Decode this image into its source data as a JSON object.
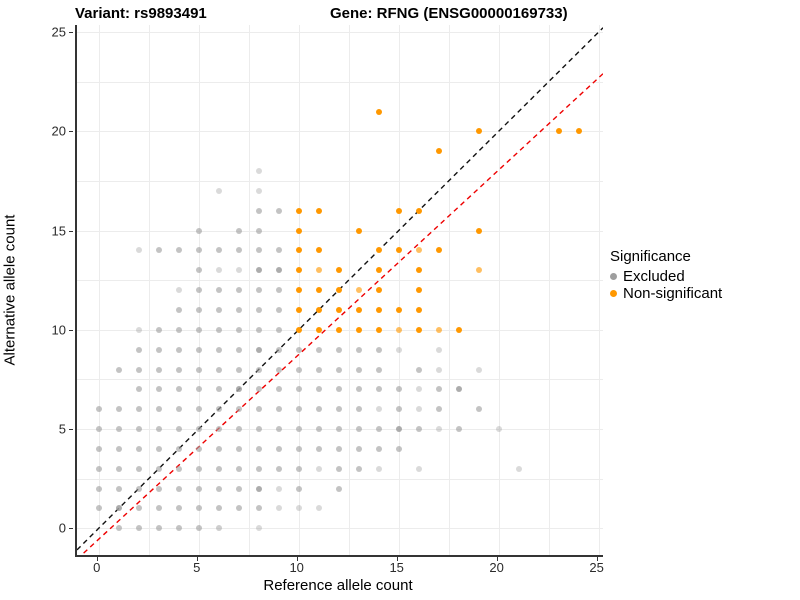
{
  "titles": {
    "left": "Variant: rs9893491",
    "right": "Gene: RFNG (ENSG00000169733)"
  },
  "legend": {
    "title": "Significance",
    "items": [
      {
        "label": "Excluded"
      },
      {
        "label": "Non-significant"
      }
    ]
  },
  "colors": {
    "excluded_gray": "#9e9e9e",
    "non_significant_orange": "#ff9800",
    "identity_line": "#111111",
    "fit_line": "#ee0000",
    "grid": "#ececec",
    "axis": "#343434"
  },
  "chart_data": {
    "type": "scatter",
    "xlabel": "Reference allele count",
    "ylabel": "Alternative allele count",
    "x_ticks": [
      0,
      5,
      10,
      15,
      20,
      25
    ],
    "y_ticks": [
      0,
      5,
      10,
      15,
      20,
      25
    ],
    "x_minor": [
      2.5,
      7.5,
      12.5,
      17.5,
      22.5
    ],
    "y_minor": [
      2.5,
      7.5,
      12.5,
      17.5,
      22.5
    ],
    "xlim": [
      -1.09,
      25.22
    ],
    "ylim": [
      -1.35,
      25.36
    ],
    "grid": true,
    "legend_position": "right",
    "series": [
      {
        "name": "Excluded",
        "color": "#9e9e9e",
        "points": [
          [
            1,
            0,
            0.62
          ],
          [
            2,
            0,
            0.62
          ],
          [
            3,
            0,
            0.62
          ],
          [
            4,
            0,
            0.62
          ],
          [
            5,
            0,
            0.62
          ],
          [
            6,
            0,
            0.5
          ],
          [
            8,
            0,
            0.38
          ],
          [
            0,
            1,
            0.62
          ],
          [
            1,
            1,
            0.85
          ],
          [
            2,
            1,
            0.62
          ],
          [
            3,
            1,
            0.62
          ],
          [
            4,
            1,
            0.62
          ],
          [
            5,
            1,
            0.62
          ],
          [
            6,
            1,
            0.62
          ],
          [
            7,
            1,
            0.62
          ],
          [
            8,
            1,
            0.62
          ],
          [
            9,
            1,
            0.38
          ],
          [
            10,
            1,
            0.38
          ],
          [
            11,
            1,
            0.38
          ],
          [
            0,
            2,
            0.62
          ],
          [
            1,
            2,
            0.62
          ],
          [
            2,
            2,
            0.62
          ],
          [
            3,
            2,
            0.62
          ],
          [
            4,
            2,
            0.62
          ],
          [
            5,
            2,
            0.62
          ],
          [
            6,
            2,
            0.62
          ],
          [
            7,
            2,
            0.62
          ],
          [
            8,
            2,
            0.85
          ],
          [
            9,
            2,
            0.38
          ],
          [
            10,
            2,
            0.62
          ],
          [
            12,
            2,
            0.62
          ],
          [
            0,
            3,
            0.62
          ],
          [
            1,
            3,
            0.62
          ],
          [
            2,
            3,
            0.62
          ],
          [
            3,
            3,
            0.62
          ],
          [
            4,
            3,
            0.62
          ],
          [
            5,
            3,
            0.62
          ],
          [
            6,
            3,
            0.62
          ],
          [
            7,
            3,
            0.62
          ],
          [
            8,
            3,
            0.62
          ],
          [
            9,
            3,
            0.62
          ],
          [
            10,
            3,
            0.62
          ],
          [
            11,
            3,
            0.38
          ],
          [
            12,
            3,
            0.62
          ],
          [
            13,
            3,
            0.62
          ],
          [
            14,
            3,
            0.38
          ],
          [
            16,
            3,
            0.38
          ],
          [
            21,
            3,
            0.38
          ],
          [
            0,
            4,
            0.62
          ],
          [
            1,
            4,
            0.62
          ],
          [
            2,
            4,
            0.62
          ],
          [
            3,
            4,
            0.62
          ],
          [
            4,
            4,
            0.62
          ],
          [
            5,
            4,
            0.62
          ],
          [
            6,
            4,
            0.62
          ],
          [
            7,
            4,
            0.62
          ],
          [
            8,
            4,
            0.62
          ],
          [
            9,
            4,
            0.62
          ],
          [
            10,
            4,
            0.62
          ],
          [
            11,
            4,
            0.62
          ],
          [
            12,
            4,
            0.62
          ],
          [
            13,
            4,
            0.62
          ],
          [
            14,
            4,
            0.62
          ],
          [
            15,
            4,
            0.62
          ],
          [
            0,
            5,
            0.62
          ],
          [
            1,
            5,
            0.62
          ],
          [
            2,
            5,
            0.62
          ],
          [
            3,
            5,
            0.62
          ],
          [
            4,
            5,
            0.62
          ],
          [
            5,
            5,
            0.62
          ],
          [
            6,
            5,
            0.62
          ],
          [
            7,
            5,
            0.62
          ],
          [
            8,
            5,
            0.62
          ],
          [
            9,
            5,
            0.62
          ],
          [
            10,
            5,
            0.62
          ],
          [
            11,
            5,
            0.62
          ],
          [
            12,
            5,
            0.62
          ],
          [
            13,
            5,
            0.62
          ],
          [
            14,
            5,
            0.62
          ],
          [
            15,
            5,
            0.85
          ],
          [
            16,
            5,
            0.62
          ],
          [
            17,
            5,
            0.38
          ],
          [
            18,
            5,
            0.62
          ],
          [
            20,
            5,
            0.38
          ],
          [
            0,
            6,
            0.62
          ],
          [
            1,
            6,
            0.62
          ],
          [
            2,
            6,
            0.62
          ],
          [
            3,
            6,
            0.62
          ],
          [
            4,
            6,
            0.62
          ],
          [
            5,
            6,
            0.62
          ],
          [
            6,
            6,
            0.62
          ],
          [
            7,
            6,
            0.62
          ],
          [
            8,
            6,
            0.62
          ],
          [
            9,
            6,
            0.62
          ],
          [
            10,
            6,
            0.62
          ],
          [
            11,
            6,
            0.62
          ],
          [
            12,
            6,
            0.62
          ],
          [
            13,
            6,
            0.62
          ],
          [
            14,
            6,
            0.38
          ],
          [
            15,
            6,
            0.62
          ],
          [
            16,
            6,
            0.38
          ],
          [
            17,
            6,
            0.62
          ],
          [
            19,
            6,
            0.62
          ],
          [
            2,
            7,
            0.62
          ],
          [
            3,
            7,
            0.62
          ],
          [
            4,
            7,
            0.62
          ],
          [
            5,
            7,
            0.62
          ],
          [
            6,
            7,
            0.62
          ],
          [
            7,
            7,
            0.85
          ],
          [
            8,
            7,
            0.62
          ],
          [
            9,
            7,
            0.62
          ],
          [
            10,
            7,
            0.62
          ],
          [
            11,
            7,
            0.62
          ],
          [
            12,
            7,
            0.62
          ],
          [
            13,
            7,
            0.62
          ],
          [
            14,
            7,
            0.62
          ],
          [
            15,
            7,
            0.62
          ],
          [
            16,
            7,
            0.38
          ],
          [
            17,
            7,
            0.62
          ],
          [
            18,
            7,
            0.85
          ],
          [
            1,
            8,
            0.62
          ],
          [
            2,
            8,
            0.62
          ],
          [
            3,
            8,
            0.62
          ],
          [
            4,
            8,
            0.62
          ],
          [
            5,
            8,
            0.62
          ],
          [
            6,
            8,
            0.62
          ],
          [
            7,
            8,
            0.62
          ],
          [
            8,
            8,
            0.62
          ],
          [
            9,
            8,
            0.62
          ],
          [
            10,
            8,
            0.62
          ],
          [
            11,
            8,
            0.62
          ],
          [
            12,
            8,
            0.62
          ],
          [
            13,
            8,
            0.62
          ],
          [
            14,
            8,
            0.62
          ],
          [
            16,
            8,
            0.62
          ],
          [
            17,
            8,
            0.38
          ],
          [
            19,
            8,
            0.38
          ],
          [
            2,
            9,
            0.62
          ],
          [
            3,
            9,
            0.62
          ],
          [
            4,
            9,
            0.62
          ],
          [
            5,
            9,
            0.62
          ],
          [
            6,
            9,
            0.62
          ],
          [
            7,
            9,
            0.62
          ],
          [
            8,
            9,
            0.85
          ],
          [
            9,
            9,
            0.62
          ],
          [
            10,
            9,
            0.62
          ],
          [
            11,
            9,
            0.62
          ],
          [
            12,
            9,
            0.62
          ],
          [
            13,
            9,
            0.62
          ],
          [
            14,
            9,
            0.62
          ],
          [
            15,
            9,
            0.38
          ],
          [
            17,
            9,
            0.38
          ],
          [
            2,
            10,
            0.38
          ],
          [
            3,
            10,
            0.62
          ],
          [
            4,
            10,
            0.62
          ],
          [
            5,
            10,
            0.62
          ],
          [
            6,
            10,
            0.62
          ],
          [
            7,
            10,
            0.62
          ],
          [
            8,
            10,
            0.62
          ],
          [
            9,
            10,
            0.62
          ],
          [
            4,
            11,
            0.62
          ],
          [
            5,
            11,
            0.62
          ],
          [
            6,
            11,
            0.62
          ],
          [
            7,
            11,
            0.62
          ],
          [
            8,
            11,
            0.62
          ],
          [
            9,
            11,
            0.62
          ],
          [
            4,
            12,
            0.38
          ],
          [
            5,
            12,
            0.62
          ],
          [
            6,
            12,
            0.62
          ],
          [
            7,
            12,
            0.62
          ],
          [
            8,
            12,
            0.62
          ],
          [
            9,
            12,
            0.62
          ],
          [
            5,
            13,
            0.62
          ],
          [
            6,
            13,
            0.38
          ],
          [
            7,
            13,
            0.38
          ],
          [
            8,
            13,
            0.85
          ],
          [
            9,
            13,
            0.85
          ],
          [
            2,
            14,
            0.38
          ],
          [
            3,
            14,
            0.62
          ],
          [
            4,
            14,
            0.62
          ],
          [
            5,
            14,
            0.62
          ],
          [
            6,
            14,
            0.62
          ],
          [
            7,
            14,
            0.62
          ],
          [
            8,
            14,
            0.62
          ],
          [
            9,
            14,
            0.62
          ],
          [
            5,
            15,
            0.62
          ],
          [
            7,
            15,
            0.62
          ],
          [
            8,
            15,
            0.62
          ],
          [
            8,
            16,
            0.62
          ],
          [
            9,
            16,
            0.62
          ],
          [
            6,
            17,
            0.38
          ],
          [
            8,
            17,
            0.38
          ],
          [
            8,
            18,
            0.38
          ]
        ]
      },
      {
        "name": "Non-significant",
        "color": "#ff9800",
        "points": [
          [
            10,
            10,
            1
          ],
          [
            11,
            10,
            1
          ],
          [
            12,
            10,
            1
          ],
          [
            13,
            10,
            1
          ],
          [
            14,
            10,
            1
          ],
          [
            15,
            10,
            0.62
          ],
          [
            16,
            10,
            1
          ],
          [
            17,
            10,
            0.62
          ],
          [
            18,
            10,
            1
          ],
          [
            10,
            11,
            1
          ],
          [
            11,
            11,
            1
          ],
          [
            12,
            11,
            1
          ],
          [
            13,
            11,
            1
          ],
          [
            14,
            11,
            1
          ],
          [
            15,
            11,
            1
          ],
          [
            16,
            11,
            1
          ],
          [
            10,
            12,
            1
          ],
          [
            11,
            12,
            1
          ],
          [
            12,
            12,
            1
          ],
          [
            13,
            12,
            0.62
          ],
          [
            14,
            12,
            1
          ],
          [
            16,
            12,
            1
          ],
          [
            10,
            13,
            1
          ],
          [
            11,
            13,
            0.62
          ],
          [
            12,
            13,
            1
          ],
          [
            14,
            13,
            1
          ],
          [
            16,
            13,
            1
          ],
          [
            19,
            13,
            0.62
          ],
          [
            10,
            14,
            1
          ],
          [
            11,
            14,
            1
          ],
          [
            14,
            14,
            1
          ],
          [
            15,
            14,
            1
          ],
          [
            16,
            14,
            0.62
          ],
          [
            17,
            14,
            1
          ],
          [
            10,
            15,
            1
          ],
          [
            13,
            15,
            1
          ],
          [
            19,
            15,
            1
          ],
          [
            10,
            16,
            1
          ],
          [
            11,
            16,
            1
          ],
          [
            15,
            16,
            1
          ],
          [
            16,
            16,
            1
          ],
          [
            17,
            19,
            1
          ],
          [
            19,
            20,
            1
          ],
          [
            23,
            20,
            1
          ],
          [
            24,
            20,
            1
          ],
          [
            14,
            21,
            1
          ]
        ]
      }
    ],
    "lines": [
      {
        "name": "identity-line",
        "slope": 1,
        "intercept": 0,
        "color": "#111111",
        "dash": "5,4",
        "width": 1.4
      },
      {
        "name": "fit-line",
        "slope": 0.93,
        "intercept": -0.55,
        "color": "#ee0000",
        "dash": "5,4",
        "width": 1.4
      }
    ]
  }
}
